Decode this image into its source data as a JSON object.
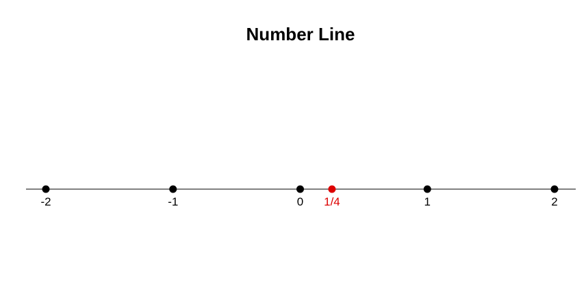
{
  "chart_data": {
    "type": "scatter",
    "title": "Number Line",
    "xlim": [
      -2.15,
      2.15
    ],
    "axis_line_color": "#000000",
    "points": [
      {
        "value": -2,
        "label": "-2",
        "color": "#000000"
      },
      {
        "value": -1,
        "label": "-1",
        "color": "#000000"
      },
      {
        "value": 0,
        "label": "0",
        "color": "#000000"
      },
      {
        "value": 1,
        "label": "1",
        "color": "#000000"
      },
      {
        "value": 2,
        "label": "2",
        "color": "#000000"
      },
      {
        "value": 0.25,
        "label": "1/4",
        "color": "#dd0000"
      }
    ]
  }
}
